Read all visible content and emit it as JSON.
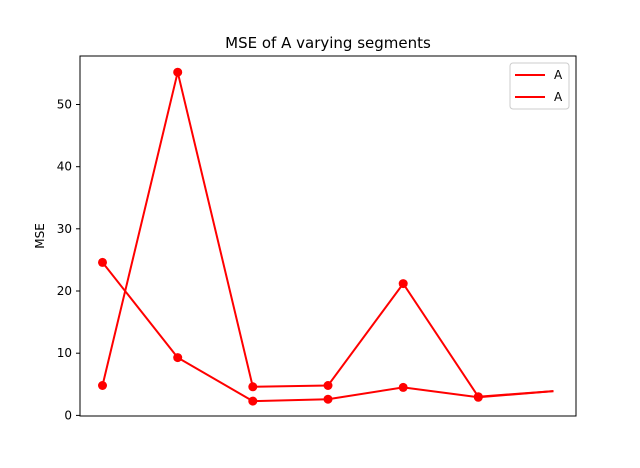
{
  "chart_data": {
    "type": "line",
    "title": "MSE of A varying segments",
    "xlabel": "",
    "ylabel": "MSE",
    "x": [
      0,
      1,
      2,
      3,
      4,
      5,
      6
    ],
    "xlim": [
      -0.3,
      6.3
    ],
    "ylim": [
      -0.1,
      57.8
    ],
    "yticks": [
      0,
      10,
      20,
      30,
      40,
      50
    ],
    "xticks_visible": false,
    "grid": false,
    "legend": "top-right",
    "line_color": "#ff0000",
    "series": [
      {
        "name": "A",
        "values": [
          4.8,
          55.2,
          4.6,
          4.8,
          21.2,
          3.0,
          3.9
        ],
        "markers": [
          true,
          true,
          true,
          true,
          true,
          true,
          false
        ]
      },
      {
        "name": "A",
        "values": [
          24.6,
          9.3,
          2.3,
          2.6,
          4.5,
          2.9,
          3.9
        ],
        "markers": [
          true,
          true,
          true,
          true,
          true,
          true,
          false
        ]
      }
    ]
  }
}
